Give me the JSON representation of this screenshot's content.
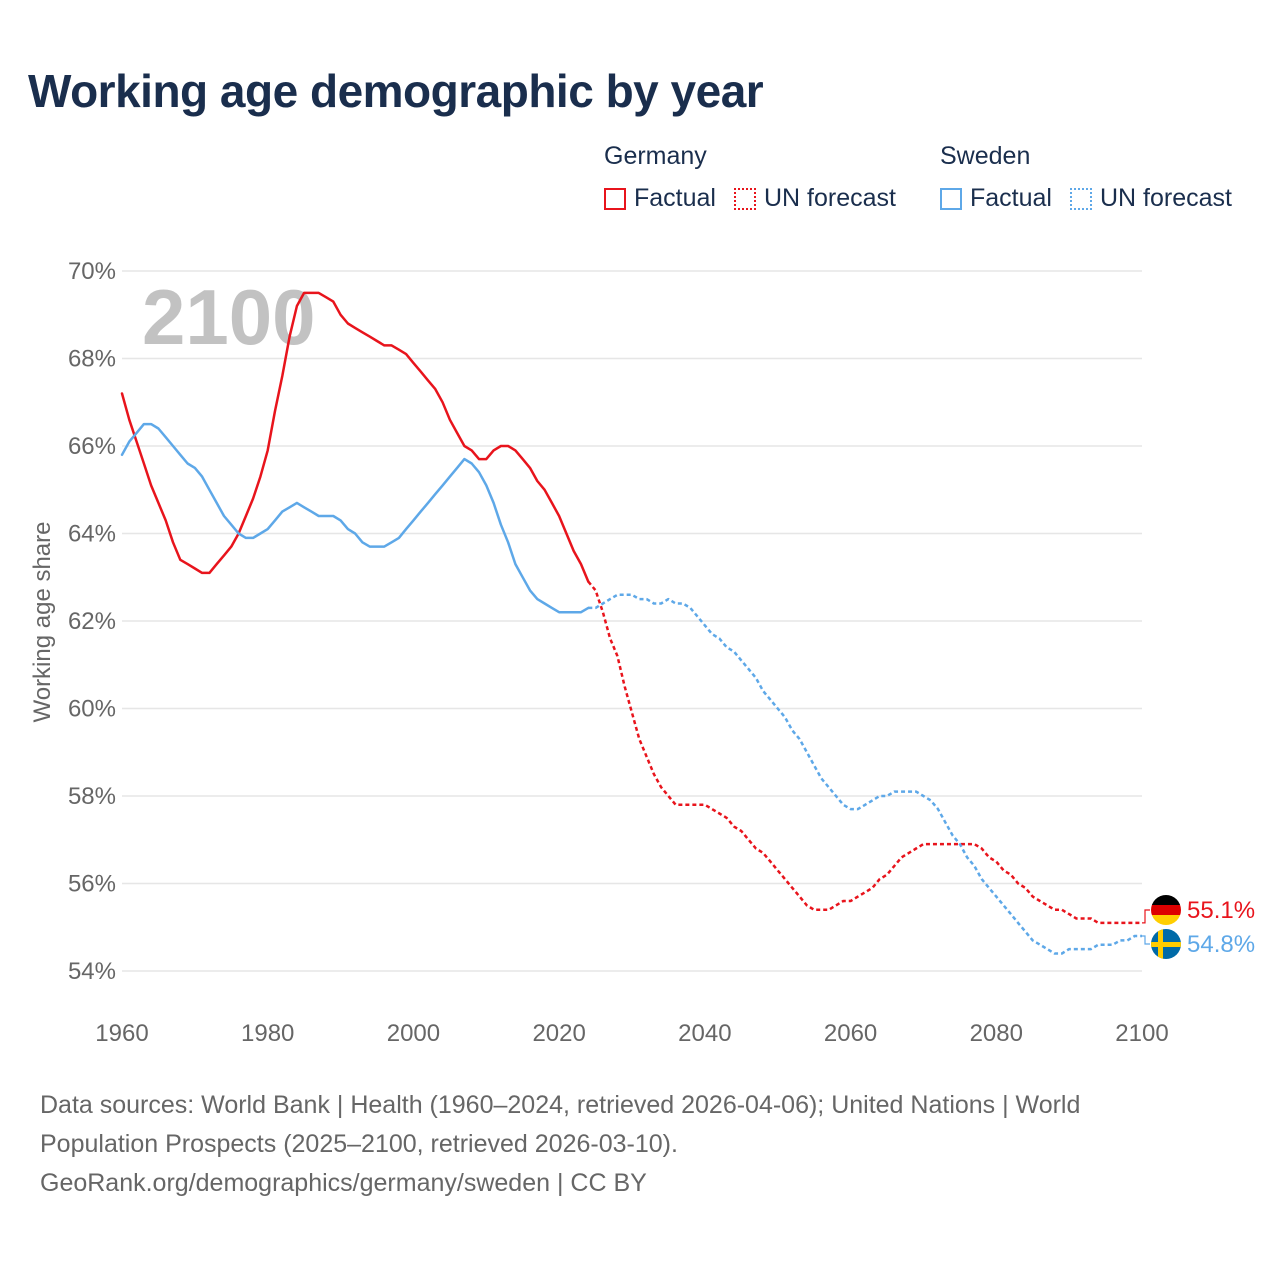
{
  "title": "Working age demographic by year",
  "legend": {
    "groups": [
      {
        "country": "Germany",
        "color": "#e8141c",
        "factual_label": "Factual",
        "forecast_label": "UN forecast"
      },
      {
        "country": "Sweden",
        "color": "#5ea8e8",
        "factual_label": "Factual",
        "forecast_label": "UN forecast"
      }
    ]
  },
  "chart_data": {
    "type": "line",
    "title": "Working age demographic by year",
    "xlabel": "",
    "ylabel": "Working age share",
    "xlim": [
      1960,
      2100
    ],
    "ylim": [
      54,
      70
    ],
    "x_ticks": [
      1960,
      1980,
      2000,
      2020,
      2040,
      2060,
      2080,
      2100
    ],
    "x_tick_labels": [
      "1960",
      "1980",
      "2000",
      "2020",
      "2040",
      "2060",
      "2080",
      "2100"
    ],
    "y_ticks": [
      54,
      56,
      58,
      60,
      62,
      64,
      66,
      68,
      70
    ],
    "y_tick_labels": [
      "54%",
      "56%",
      "58%",
      "60%",
      "62%",
      "64%",
      "66%",
      "68%",
      "70%"
    ],
    "grid": true,
    "year_label": "2100",
    "series": [
      {
        "name": "Germany",
        "segment": "Factual",
        "color": "#e8141c",
        "dashed": false,
        "x": [
          1960,
          1961,
          1962,
          1963,
          1964,
          1965,
          1966,
          1967,
          1968,
          1969,
          1970,
          1971,
          1972,
          1973,
          1974,
          1975,
          1976,
          1977,
          1978,
          1979,
          1980,
          1981,
          1982,
          1983,
          1984,
          1985,
          1986,
          1987,
          1988,
          1989,
          1990,
          1991,
          1992,
          1993,
          1994,
          1995,
          1996,
          1997,
          1998,
          1999,
          2000,
          2001,
          2002,
          2003,
          2004,
          2005,
          2006,
          2007,
          2008,
          2009,
          2010,
          2011,
          2012,
          2013,
          2014,
          2015,
          2016,
          2017,
          2018,
          2019,
          2020,
          2021,
          2022,
          2023,
          2024
        ],
        "y": [
          67.2,
          66.6,
          66.1,
          65.6,
          65.1,
          64.7,
          64.3,
          63.8,
          63.4,
          63.3,
          63.2,
          63.1,
          63.1,
          63.3,
          63.5,
          63.7,
          64.0,
          64.4,
          64.8,
          65.3,
          65.9,
          66.8,
          67.6,
          68.5,
          69.2,
          69.5,
          69.5,
          69.5,
          69.4,
          69.3,
          69.0,
          68.8,
          68.7,
          68.6,
          68.5,
          68.4,
          68.3,
          68.3,
          68.2,
          68.1,
          67.9,
          67.7,
          67.5,
          67.3,
          67.0,
          66.6,
          66.3,
          66.0,
          65.9,
          65.7,
          65.7,
          65.9,
          66.0,
          66.0,
          65.9,
          65.7,
          65.5,
          65.2,
          65.0,
          64.7,
          64.4,
          64.0,
          63.6,
          63.3,
          62.9
        ]
      },
      {
        "name": "Germany",
        "segment": "UN forecast",
        "color": "#e8141c",
        "dashed": true,
        "x": [
          2024,
          2025,
          2026,
          2027,
          2028,
          2029,
          2030,
          2031,
          2032,
          2033,
          2034,
          2035,
          2036,
          2037,
          2038,
          2039,
          2040,
          2041,
          2042,
          2043,
          2044,
          2045,
          2046,
          2047,
          2048,
          2049,
          2050,
          2051,
          2052,
          2053,
          2054,
          2055,
          2056,
          2057,
          2058,
          2059,
          2060,
          2061,
          2062,
          2063,
          2064,
          2065,
          2066,
          2067,
          2068,
          2069,
          2070,
          2071,
          2072,
          2073,
          2074,
          2075,
          2076,
          2077,
          2078,
          2079,
          2080,
          2081,
          2082,
          2083,
          2084,
          2085,
          2086,
          2087,
          2088,
          2089,
          2090,
          2091,
          2092,
          2093,
          2094,
          2095,
          2096,
          2097,
          2098,
          2099,
          2100
        ],
        "y": [
          62.9,
          62.7,
          62.2,
          61.6,
          61.2,
          60.5,
          59.9,
          59.3,
          58.9,
          58.5,
          58.2,
          58.0,
          57.8,
          57.8,
          57.8,
          57.8,
          57.8,
          57.7,
          57.6,
          57.5,
          57.3,
          57.2,
          57.0,
          56.8,
          56.7,
          56.5,
          56.3,
          56.1,
          55.9,
          55.7,
          55.5,
          55.4,
          55.4,
          55.4,
          55.5,
          55.6,
          55.6,
          55.7,
          55.8,
          55.9,
          56.1,
          56.2,
          56.4,
          56.6,
          56.7,
          56.8,
          56.9,
          56.9,
          56.9,
          56.9,
          56.9,
          56.9,
          56.9,
          56.9,
          56.8,
          56.6,
          56.5,
          56.3,
          56.2,
          56.0,
          55.9,
          55.7,
          55.6,
          55.5,
          55.4,
          55.4,
          55.3,
          55.2,
          55.2,
          55.2,
          55.1,
          55.1,
          55.1,
          55.1,
          55.1,
          55.1,
          55.1
        ]
      },
      {
        "name": "Sweden",
        "segment": "Factual",
        "color": "#5ea8e8",
        "dashed": false,
        "x": [
          1960,
          1961,
          1962,
          1963,
          1964,
          1965,
          1966,
          1967,
          1968,
          1969,
          1970,
          1971,
          1972,
          1973,
          1974,
          1975,
          1976,
          1977,
          1978,
          1979,
          1980,
          1981,
          1982,
          1983,
          1984,
          1985,
          1986,
          1987,
          1988,
          1989,
          1990,
          1991,
          1992,
          1993,
          1994,
          1995,
          1996,
          1997,
          1998,
          1999,
          2000,
          2001,
          2002,
          2003,
          2004,
          2005,
          2006,
          2007,
          2008,
          2009,
          2010,
          2011,
          2012,
          2013,
          2014,
          2015,
          2016,
          2017,
          2018,
          2019,
          2020,
          2021,
          2022,
          2023,
          2024
        ],
        "y": [
          65.8,
          66.1,
          66.3,
          66.5,
          66.5,
          66.4,
          66.2,
          66.0,
          65.8,
          65.6,
          65.5,
          65.3,
          65.0,
          64.7,
          64.4,
          64.2,
          64.0,
          63.9,
          63.9,
          64.0,
          64.1,
          64.3,
          64.5,
          64.6,
          64.7,
          64.6,
          64.5,
          64.4,
          64.4,
          64.4,
          64.3,
          64.1,
          64.0,
          63.8,
          63.7,
          63.7,
          63.7,
          63.8,
          63.9,
          64.1,
          64.3,
          64.5,
          64.7,
          64.9,
          65.1,
          65.3,
          65.5,
          65.7,
          65.6,
          65.4,
          65.1,
          64.7,
          64.2,
          63.8,
          63.3,
          63.0,
          62.7,
          62.5,
          62.4,
          62.3,
          62.2,
          62.2,
          62.2,
          62.2,
          62.3
        ]
      },
      {
        "name": "Sweden",
        "segment": "UN forecast",
        "color": "#5ea8e8",
        "dashed": true,
        "x": [
          2024,
          2025,
          2026,
          2027,
          2028,
          2029,
          2030,
          2031,
          2032,
          2033,
          2034,
          2035,
          2036,
          2037,
          2038,
          2039,
          2040,
          2041,
          2042,
          2043,
          2044,
          2045,
          2046,
          2047,
          2048,
          2049,
          2050,
          2051,
          2052,
          2053,
          2054,
          2055,
          2056,
          2057,
          2058,
          2059,
          2060,
          2061,
          2062,
          2063,
          2064,
          2065,
          2066,
          2067,
          2068,
          2069,
          2070,
          2071,
          2072,
          2073,
          2074,
          2075,
          2076,
          2077,
          2078,
          2079,
          2080,
          2081,
          2082,
          2083,
          2084,
          2085,
          2086,
          2087,
          2088,
          2089,
          2090,
          2091,
          2092,
          2093,
          2094,
          2095,
          2096,
          2097,
          2098,
          2099,
          2100
        ],
        "y": [
          62.3,
          62.3,
          62.4,
          62.5,
          62.6,
          62.6,
          62.6,
          62.5,
          62.5,
          62.4,
          62.4,
          62.5,
          62.4,
          62.4,
          62.3,
          62.1,
          61.9,
          61.7,
          61.6,
          61.4,
          61.3,
          61.1,
          60.9,
          60.7,
          60.4,
          60.2,
          60.0,
          59.8,
          59.5,
          59.3,
          59.0,
          58.7,
          58.4,
          58.2,
          58.0,
          57.8,
          57.7,
          57.7,
          57.8,
          57.9,
          58.0,
          58.0,
          58.1,
          58.1,
          58.1,
          58.1,
          58.0,
          57.9,
          57.7,
          57.4,
          57.1,
          56.9,
          56.6,
          56.4,
          56.1,
          55.9,
          55.7,
          55.5,
          55.3,
          55.1,
          54.9,
          54.7,
          54.6,
          54.5,
          54.4,
          54.4,
          54.5,
          54.5,
          54.5,
          54.5,
          54.6,
          54.6,
          54.6,
          54.7,
          54.7,
          54.8,
          54.8
        ]
      }
    ],
    "end_labels": [
      {
        "name": "Germany",
        "value_label": "55.1%",
        "color": "#e8141c"
      },
      {
        "name": "Sweden",
        "value_label": "54.8%",
        "color": "#5ea8e8"
      }
    ]
  },
  "footer": {
    "line1": "Data sources: World Bank | Health (1960–2024, retrieved 2026-04-06); United Nations | World",
    "line2": "Population Prospects (2025–2100, retrieved 2026-03-10).",
    "line3": "GeoRank.org/demographics/germany/sweden | CC BY"
  }
}
